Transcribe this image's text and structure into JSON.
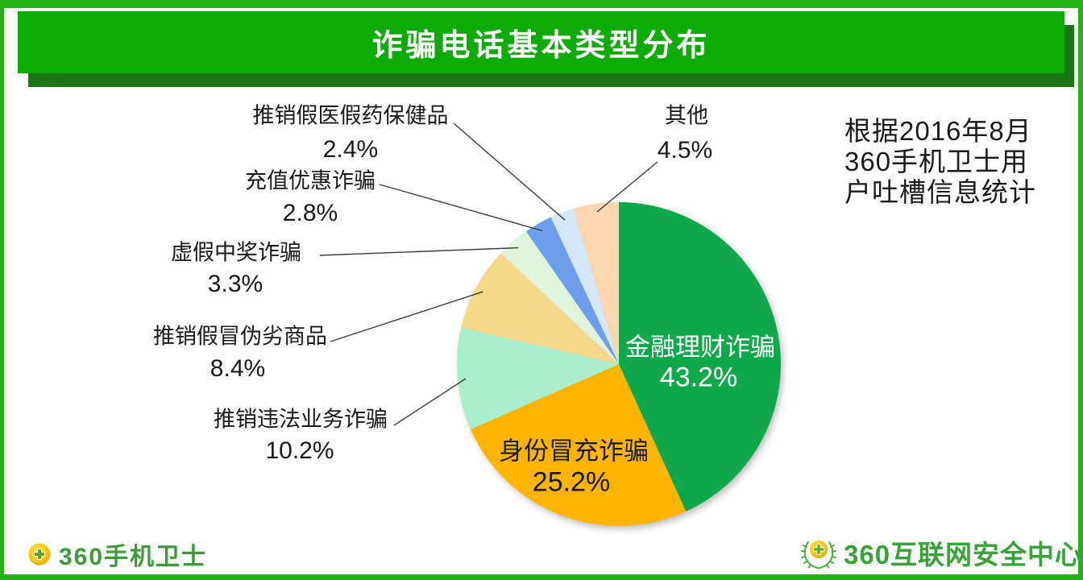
{
  "page": {
    "title": "诈骗电话基本类型分布",
    "source_note_lines": [
      "根据2016年8月",
      "360手机卫士用",
      "户吐槽信息统计"
    ],
    "footer_left_logo": "360手机卫士",
    "footer_right_logo": "360互联网安全中心"
  },
  "colors": {
    "banner_green": "#0EAB06",
    "banner_shadow_green": "#187712",
    "frame_green": "#25B217",
    "logo_green": "#3E9B39",
    "leader_line": "#3f3f3f"
  },
  "chart_data": {
    "type": "pie",
    "title": "诈骗电话基本类型分布",
    "start_angle_deg": 0,
    "direction": "clockwise",
    "legend_position": "none",
    "slices": [
      {
        "label": "金融理财诈骗",
        "value": 43.2,
        "pct_label": "43.2%",
        "color": "#10A84D",
        "label_placement": "inside"
      },
      {
        "label": "身份冒充诈骗",
        "value": 25.2,
        "pct_label": "25.2%",
        "color": "#FFB400",
        "label_placement": "inside"
      },
      {
        "label": "推销违法业务诈骗",
        "value": 10.2,
        "pct_label": "10.2%",
        "color": "#A9EFCE",
        "label_placement": "outside"
      },
      {
        "label": "推销假冒伪劣商品",
        "value": 8.4,
        "pct_label": "8.4%",
        "color": "#F5D98B",
        "label_placement": "outside"
      },
      {
        "label": "虚假中奖诈骗",
        "value": 3.3,
        "pct_label": "3.3%",
        "color": "#DFF2DA",
        "label_placement": "outside"
      },
      {
        "label": "充值优惠诈骗",
        "value": 2.8,
        "pct_label": "2.8%",
        "color": "#6D9EEB",
        "label_placement": "outside"
      },
      {
        "label": "推销假医假药保健品",
        "value": 2.4,
        "pct_label": "2.4%",
        "color": "#D3E7F8",
        "label_placement": "outside"
      },
      {
        "label": "其他",
        "value": 4.5,
        "pct_label": "4.5%",
        "color": "#FAD5AE",
        "label_placement": "outside"
      }
    ]
  }
}
